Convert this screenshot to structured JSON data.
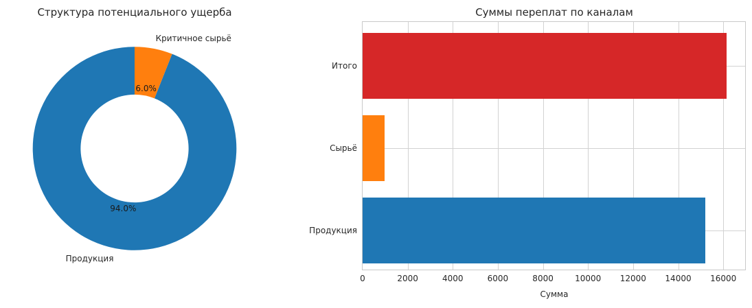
{
  "figure": {
    "background": "#ffffff",
    "text_color": "#262626",
    "grid_color": "#d2d2d2"
  },
  "chart_data": [
    {
      "type": "pie",
      "subtype": "donut",
      "title": "Структура потенциального ущерба",
      "labels": [
        "Продукция",
        "Критичное сырьё"
      ],
      "values": [
        94.0,
        6.0
      ],
      "unit": "%",
      "pct_labels": [
        "94.0%",
        "6.0%"
      ],
      "colors": [
        "#1f77b4",
        "#ff7f0e"
      ],
      "start_angle": 90,
      "counterclock": true,
      "inner_radius_ratio": 0.53,
      "label_distance": 1.1,
      "pct_distance": 0.6,
      "legend": "none"
    },
    {
      "type": "bar",
      "orientation": "horizontal",
      "title": "Суммы переплат по каналам",
      "categories": [
        "Итого",
        "Сырьё",
        "Продукция"
      ],
      "categories_order": "top-to-bottom",
      "values": [
        16160,
        970,
        15190
      ],
      "colors": [
        "#d62728",
        "#ff7f0e",
        "#1f77b4"
      ],
      "xlabel": "Сумма",
      "xlim": [
        0,
        16970
      ],
      "xticks": [
        0,
        2000,
        4000,
        6000,
        8000,
        10000,
        12000,
        14000,
        16000
      ],
      "xtick_labels": [
        "0",
        "2000",
        "4000",
        "6000",
        "8000",
        "10000",
        "12000",
        "14000",
        "16000"
      ],
      "grid": true,
      "legend": "none"
    }
  ]
}
